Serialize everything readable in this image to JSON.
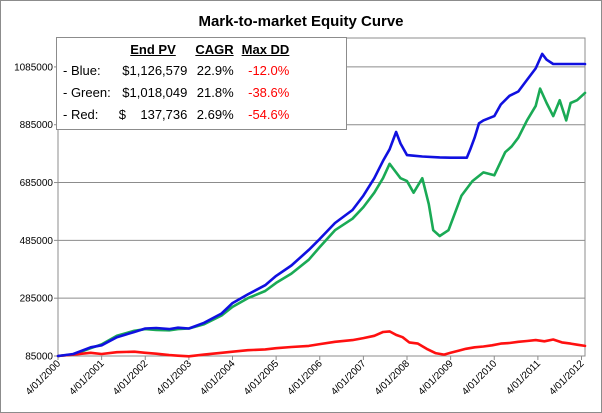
{
  "chart_data": {
    "type": "line",
    "title": "Mark-to-market Equity Curve",
    "xlabel": "",
    "ylabel": "",
    "ylim": [
      85000,
      1185000
    ],
    "yticks": [
      85000,
      285000,
      485000,
      685000,
      885000,
      1085000
    ],
    "ytick_labels": [
      "85000",
      "285000",
      "485000",
      "685000",
      "885000",
      "1085000"
    ],
    "xlim": [
      2000.25,
      2012.33
    ],
    "xticks": [
      2000.25,
      2001.25,
      2002.25,
      2003.25,
      2004.25,
      2005.25,
      2006.25,
      2007.25,
      2008.25,
      2009.25,
      2010.25,
      2011.25,
      2012.25
    ],
    "xtick_labels": [
      "4/01/2000",
      "4/01/2001",
      "4/01/2002",
      "4/01/2003",
      "4/01/2004",
      "4/01/2005",
      "4/01/2006",
      "4/01/2007",
      "4/01/2008",
      "4/01/2009",
      "4/01/2010",
      "4/01/2011",
      "4/01/2012"
    ],
    "grid": true,
    "series": [
      {
        "name": "Blue",
        "color": "#1010e0",
        "x": [
          2000.25,
          2000.6,
          2001.0,
          2001.25,
          2001.6,
          2002.0,
          2002.25,
          2002.5,
          2002.8,
          2003.0,
          2003.25,
          2003.6,
          2004.0,
          2004.25,
          2004.6,
          2005.0,
          2005.25,
          2005.6,
          2006.0,
          2006.25,
          2006.6,
          2007.0,
          2007.25,
          2007.5,
          2007.7,
          2007.85,
          2008.0,
          2008.1,
          2008.25,
          2008.4,
          2008.6,
          2009.0,
          2009.25,
          2009.5,
          2009.62,
          2009.7,
          2009.8,
          2009.9,
          2010.0,
          2010.25,
          2010.4,
          2010.6,
          2010.8,
          2011.0,
          2011.2,
          2011.35,
          2011.45,
          2011.6,
          2011.8,
          2012.0,
          2012.33
        ],
        "y": [
          85000,
          92000,
          115000,
          122000,
          150000,
          168000,
          180000,
          182000,
          178000,
          183000,
          180000,
          200000,
          232000,
          268000,
          298000,
          330000,
          362000,
          398000,
          452000,
          490000,
          545000,
          590000,
          640000,
          700000,
          760000,
          800000,
          860000,
          820000,
          780000,
          778000,
          775000,
          772000,
          771000,
          771000,
          771000,
          800000,
          840000,
          890000,
          900000,
          915000,
          955000,
          985000,
          1000000,
          1040000,
          1080000,
          1130000,
          1110000,
          1095000,
          1095000,
          1095000,
          1095000
        ]
      },
      {
        "name": "Green",
        "color": "#1aaa55",
        "x": [
          2000.25,
          2000.6,
          2001.0,
          2001.25,
          2001.6,
          2002.0,
          2002.25,
          2002.5,
          2002.8,
          2003.0,
          2003.25,
          2003.6,
          2004.0,
          2004.25,
          2004.6,
          2005.0,
          2005.25,
          2005.6,
          2006.0,
          2006.25,
          2006.6,
          2007.0,
          2007.25,
          2007.5,
          2007.7,
          2007.85,
          2007.95,
          2008.1,
          2008.25,
          2008.4,
          2008.6,
          2008.75,
          2008.85,
          2009.0,
          2009.2,
          2009.35,
          2009.5,
          2009.75,
          2010.0,
          2010.25,
          2010.5,
          2010.65,
          2010.8,
          2011.0,
          2011.2,
          2011.3,
          2011.45,
          2011.6,
          2011.75,
          2011.9,
          2012.0,
          2012.15,
          2012.33
        ],
        "y": [
          85000,
          90000,
          112000,
          125000,
          155000,
          172000,
          178000,
          175000,
          174000,
          178000,
          180000,
          195000,
          225000,
          255000,
          285000,
          310000,
          338000,
          370000,
          418000,
          462000,
          520000,
          560000,
          600000,
          650000,
          700000,
          750000,
          730000,
          700000,
          690000,
          650000,
          700000,
          610000,
          520000,
          500000,
          520000,
          580000,
          640000,
          690000,
          720000,
          710000,
          790000,
          810000,
          840000,
          900000,
          950000,
          1010000,
          960000,
          915000,
          970000,
          900000,
          960000,
          970000,
          995000
        ]
      },
      {
        "name": "Red",
        "color": "#ff1010",
        "x": [
          2000.25,
          2000.6,
          2001.0,
          2001.25,
          2001.6,
          2002.0,
          2002.25,
          2002.5,
          2002.8,
          2003.0,
          2003.25,
          2003.6,
          2004.0,
          2004.25,
          2004.6,
          2005.0,
          2005.25,
          2005.6,
          2006.0,
          2006.25,
          2006.6,
          2007.0,
          2007.25,
          2007.5,
          2007.7,
          2007.85,
          2008.0,
          2008.15,
          2008.3,
          2008.5,
          2008.7,
          2008.9,
          2009.1,
          2009.25,
          2009.45,
          2009.6,
          2009.8,
          2010.0,
          2010.2,
          2010.4,
          2010.6,
          2010.8,
          2011.0,
          2011.2,
          2011.4,
          2011.6,
          2011.8,
          2012.0,
          2012.15,
          2012.33
        ],
        "y": [
          85000,
          90000,
          96000,
          92000,
          98000,
          100000,
          96000,
          93000,
          88000,
          86000,
          84000,
          90000,
          96000,
          100000,
          105000,
          108000,
          112000,
          116000,
          120000,
          126000,
          134000,
          140000,
          147000,
          155000,
          168000,
          170000,
          158000,
          150000,
          132000,
          128000,
          110000,
          95000,
          90000,
          96000,
          104000,
          110000,
          115000,
          118000,
          122000,
          128000,
          130000,
          134000,
          137000,
          140000,
          136000,
          142000,
          132000,
          128000,
          124000,
          120000
        ]
      }
    ]
  },
  "stats": {
    "headers": [
      "",
      "End PV",
      "CAGR",
      "Max DD"
    ],
    "rows": [
      {
        "label": "- Blue:",
        "end_pv": "$1,126,579",
        "cagr": "22.9%",
        "max_dd": "-12.0%"
      },
      {
        "label": "- Green:",
        "end_pv": "$1,018,049",
        "cagr": "21.8%",
        "max_dd": "-38.6%"
      },
      {
        "label": "- Red:",
        "end_pv": "$    137,736",
        "cagr": "2.69%",
        "max_dd": "-54.6%"
      }
    ]
  }
}
